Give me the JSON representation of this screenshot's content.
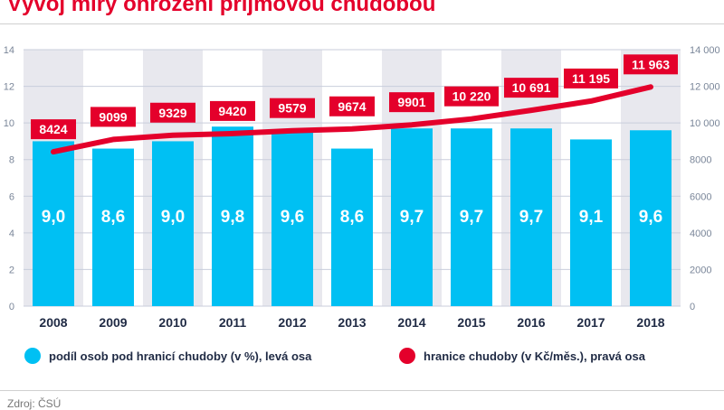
{
  "title": "Vývoj míry ohrožení příjmovou chudobou",
  "source": "Zdroj: ČSÚ",
  "colors": {
    "bar": "#00c0f3",
    "line": "#e4002b",
    "band": "#e8e8ee",
    "grid": "#c9cedb",
    "axis_text": "#7a8699",
    "label": "#1f2a44",
    "title": "#e4002b"
  },
  "legend": {
    "bars": "podíl osob pod hranicí chudoby (v %), levá osa",
    "line": "hranice chudoby (v Kč/měs.), pravá osa"
  },
  "chart_data": {
    "type": "bar+line",
    "categories": [
      "2008",
      "2009",
      "2010",
      "2011",
      "2012",
      "2013",
      "2014",
      "2015",
      "2016",
      "2017",
      "2018"
    ],
    "series": [
      {
        "name": "podíl osob pod hranicí chudoby (v %)",
        "axis": "left",
        "type": "bar",
        "values": [
          9.0,
          8.6,
          9.0,
          9.8,
          9.6,
          8.6,
          9.7,
          9.7,
          9.7,
          9.1,
          9.6
        ],
        "labels": [
          "9,0",
          "8,6",
          "9,0",
          "9,8",
          "9,6",
          "8,6",
          "9,7",
          "9,7",
          "9,7",
          "9,1",
          "9,6"
        ]
      },
      {
        "name": "hranice chudoby (v Kč/měs.)",
        "axis": "right",
        "type": "line",
        "values": [
          8424,
          9099,
          9329,
          9420,
          9579,
          9674,
          9901,
          10220,
          10691,
          11195,
          11963
        ],
        "labels": [
          "8424",
          "9099",
          "9329",
          "9420",
          "9579",
          "9674",
          "9901",
          "10 220",
          "10 691",
          "11 195",
          "11 963"
        ]
      }
    ],
    "left_axis": {
      "min": 0,
      "max": 14,
      "ticks": [
        "0",
        "2",
        "4",
        "6",
        "8",
        "10",
        "12",
        "14"
      ]
    },
    "right_axis": {
      "min": 0,
      "max": 14000,
      "ticks": [
        "0",
        "2000",
        "4000",
        "6000",
        "8000",
        "10 000",
        "12 000",
        "14 000"
      ]
    },
    "grid": true
  }
}
